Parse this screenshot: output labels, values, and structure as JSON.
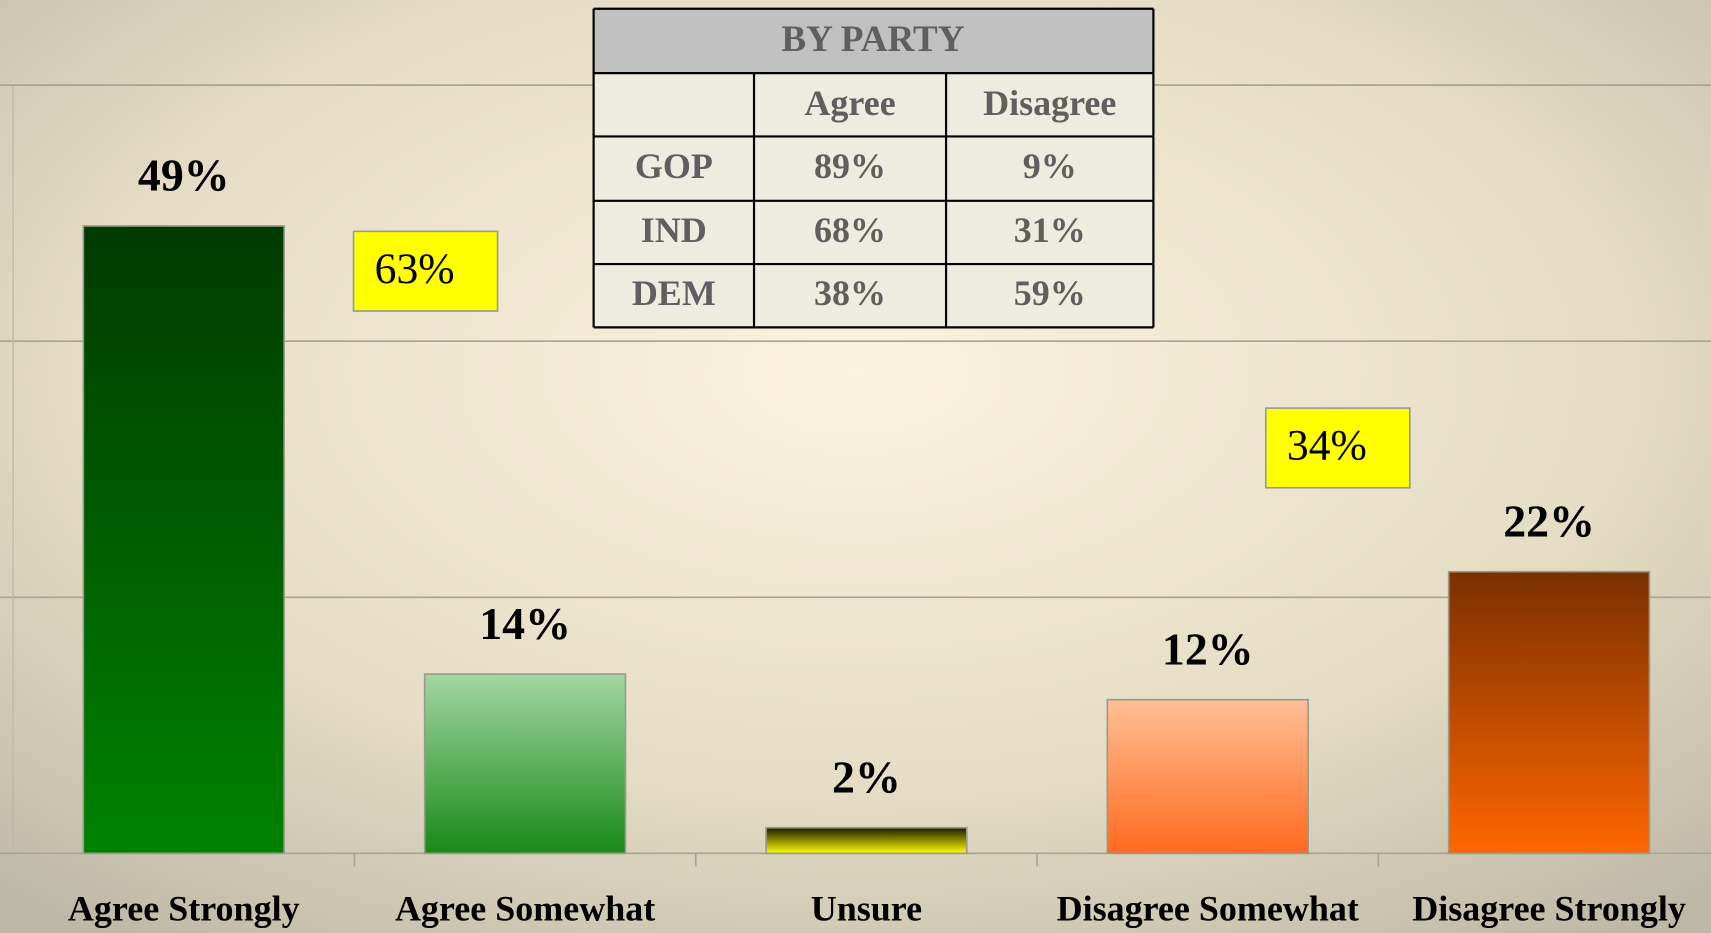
{
  "chart_data": {
    "type": "bar",
    "categories": [
      "Agree Strongly",
      "Agree Somewhat",
      "Unsure",
      "Disagree Somewhat",
      "Disagree Strongly"
    ],
    "values": [
      49,
      14,
      2,
      12,
      22
    ],
    "value_labels": [
      "49%",
      "14%",
      "2%",
      "12%",
      "22%"
    ],
    "colors": [
      [
        "#003a00",
        "#008200"
      ],
      [
        "#a3d6a3",
        "#188a18"
      ],
      [
        "#1a1a00",
        "#ffff00"
      ],
      [
        "#ffbf96",
        "#ff6a1e"
      ],
      [
        "#7a2f00",
        "#ff6600"
      ]
    ],
    "ylim": [
      0,
      60
    ],
    "yticks": [
      0,
      20,
      40,
      60
    ],
    "grid": true,
    "annotations": [
      "63%",
      "34%"
    ]
  },
  "table": {
    "title": "BY PARTY",
    "columns": [
      "Agree",
      "Disagree"
    ],
    "rows": [
      {
        "label": "GOP",
        "values": [
          "89%",
          "9%"
        ]
      },
      {
        "label": "IND",
        "values": [
          "68%",
          "31%"
        ]
      },
      {
        "label": "DEM",
        "values": [
          "38%",
          "59%"
        ]
      }
    ]
  }
}
